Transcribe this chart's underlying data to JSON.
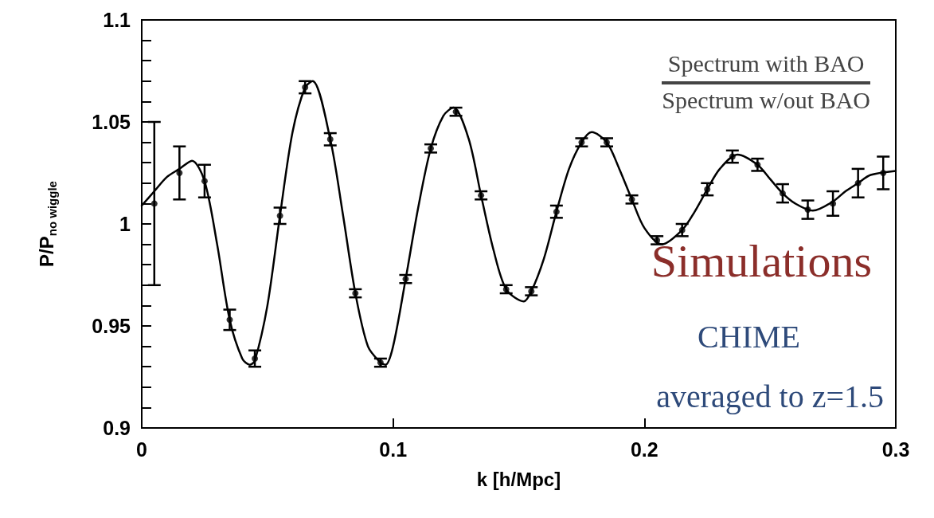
{
  "chart_data": {
    "type": "line",
    "xlabel": "k [h/Mpc]",
    "ylabel": "P/P$_{no wiggle}$",
    "xlim": [
      0,
      0.3
    ],
    "xticks": [
      0,
      0.1,
      0.2,
      0.3
    ],
    "ylim": [
      0.9,
      1.1
    ],
    "yticks": [
      0.9,
      {
        "value": 0.91,
        "label": null
      },
      {
        "value": 0.92,
        "label": null
      },
      {
        "value": 0.93,
        "label": null
      },
      {
        "value": 0.94,
        "label": null
      },
      0.95,
      {
        "value": 0.96,
        "label": null
      },
      {
        "value": 0.97,
        "label": null
      },
      {
        "value": 0.98,
        "label": null
      },
      {
        "value": 0.99,
        "label": null
      },
      1,
      {
        "value": 1.01,
        "label": null
      },
      {
        "value": 1.02,
        "label": null
      },
      {
        "value": 1.03,
        "label": null
      },
      {
        "value": 1.04,
        "label": null
      },
      1.05,
      {
        "value": 1.06,
        "label": null
      },
      {
        "value": 1.07,
        "label": null
      },
      {
        "value": 1.08,
        "label": null
      },
      {
        "value": 1.09,
        "label": null
      },
      1.1
    ],
    "grid": false,
    "annotations": [
      "Spectrum with BAO",
      "Spectrum w/out BAO",
      "Simulations",
      "CHIME",
      "averaged to z=1.5"
    ],
    "series": [
      {
        "color": "#000000",
        "marker": "none",
        "line_style": "solid",
        "x": [
          0,
          0.005,
          0.01,
          0.015,
          0.02,
          0.025,
          0.03,
          0.035,
          0.04,
          0.043,
          0.045,
          0.05,
          0.055,
          0.06,
          0.065,
          0.068,
          0.075,
          0.08,
          0.085,
          0.09,
          0.095,
          0.097,
          0.1,
          0.105,
          0.11,
          0.115,
          0.12,
          0.124,
          0.13,
          0.135,
          0.14,
          0.145,
          0.152,
          0.155,
          0.16,
          0.165,
          0.17,
          0.175,
          0.179,
          0.185,
          0.19,
          0.195,
          0.2,
          0.207,
          0.215,
          0.22,
          0.225,
          0.23,
          0.237,
          0.245,
          0.25,
          0.255,
          0.26,
          0.267,
          0.275,
          0.28,
          0.285,
          0.29,
          0.3
        ],
        "values": [
          1.009,
          1.016,
          1.023,
          1.027,
          1.031,
          1.021,
          0.99,
          0.953,
          0.934,
          0.931,
          0.933,
          0.96,
          1.004,
          1.045,
          1.067,
          1.07,
          1.0415,
          1.005,
          0.966,
          0.94,
          0.932,
          0.931,
          0.94,
          0.973,
          1.008,
          1.037,
          1.053,
          1.057,
          1.042,
          1.014,
          0.987,
          0.968,
          0.962,
          0.967,
          0.983,
          1.006,
          1.027,
          1.04,
          1.045,
          1.04,
          1.027,
          1.012,
          0.998,
          0.99,
          0.997,
          1.006,
          1.017,
          1.027,
          1.034,
          1.029,
          1.022,
          1.015,
          1.01,
          1.0065,
          1.011,
          1.016,
          1.02,
          1.024,
          1.026
        ]
      },
      {
        "type": "scatter",
        "color": "#000000",
        "marker": "circle",
        "x": [
          0.005,
          0.015,
          0.025,
          0.035,
          0.045,
          0.055,
          0.065,
          0.075,
          0.085,
          0.095,
          0.105,
          0.115,
          0.125,
          0.135,
          0.145,
          0.155,
          0.165,
          0.175,
          0.185,
          0.195,
          0.205,
          0.215,
          0.225,
          0.235,
          0.245,
          0.255,
          0.265,
          0.275,
          0.285,
          0.295
        ],
        "values": [
          1.01,
          1.025,
          1.021,
          0.953,
          0.934,
          1.004,
          1.067,
          1.0415,
          0.966,
          0.932,
          0.973,
          1.037,
          1.055,
          1.014,
          0.968,
          0.967,
          1.006,
          1.04,
          1.04,
          1.012,
          0.992,
          0.997,
          1.017,
          1.033,
          1.029,
          1.015,
          1.007,
          1.01,
          1.02,
          1.025
        ],
        "errors": [
          0.04,
          0.013,
          0.008,
          0.005,
          0.004,
          0.004,
          0.003,
          0.003,
          0.002,
          0.002,
          0.002,
          0.002,
          0.002,
          0.002,
          0.002,
          0.002,
          0.003,
          0.002,
          0.002,
          0.002,
          0.002,
          0.003,
          0.003,
          0.003,
          0.003,
          0.0045,
          0.0045,
          0.006,
          0.007,
          0.008
        ]
      }
    ]
  }
}
